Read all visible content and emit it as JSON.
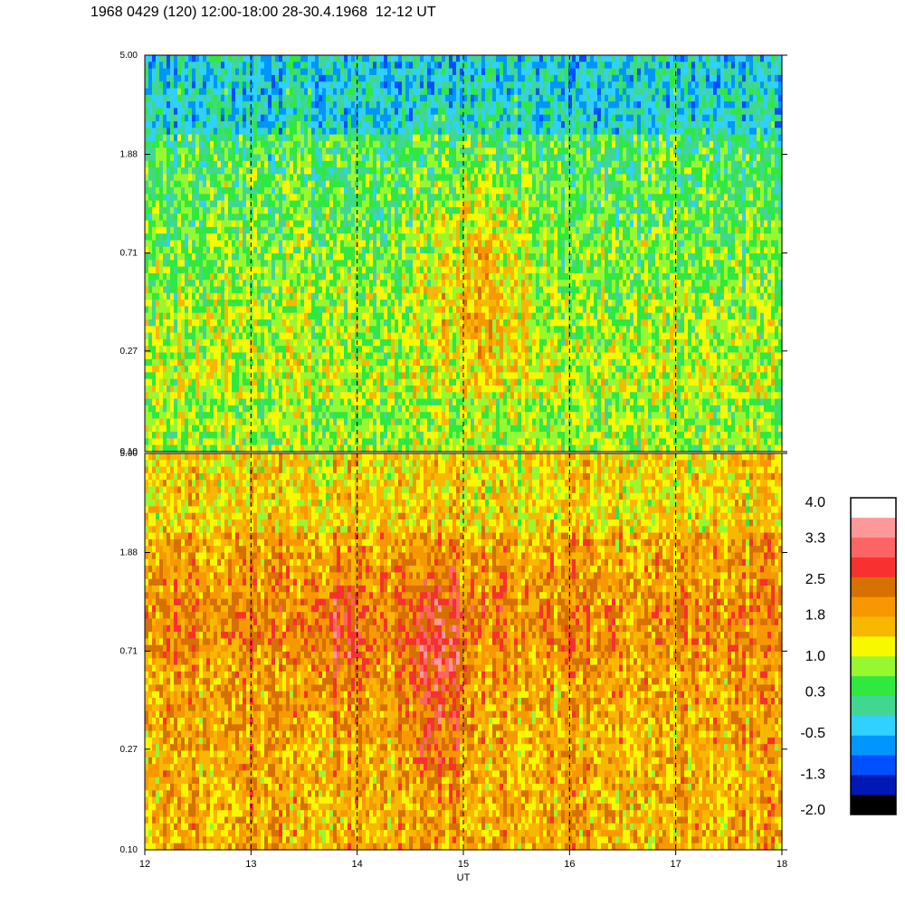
{
  "title": "1968 0429 (120) 12:00-18:00 28-30.4.1968  12-12 UT",
  "colors": {
    "scale": [
      "#000000",
      "#0018b4",
      "#0050ff",
      "#0096ff",
      "#30d0ff",
      "#40d890",
      "#30e840",
      "#98f830",
      "#f8f800",
      "#f8b800",
      "#f89800",
      "#d87000",
      "#f83030",
      "#ff6464",
      "#ff9898",
      "#ffffff"
    ],
    "dashed_line": "#000000",
    "frame": "#000000"
  },
  "chart_data": [
    {
      "type": "heatmap",
      "panel": "top",
      "y_tick_labels": [
        "5.00",
        "1.88",
        "0.71",
        "0.27",
        "0.10"
      ],
      "y_scale": "log",
      "ylim": [
        0.1,
        5.0
      ],
      "xlim": [
        12,
        18
      ],
      "dashed_vertical_lines_at": [
        13,
        14,
        15,
        16,
        17
      ],
      "dominant_levels": [
        "0.3",
        "1.0",
        "-0.5",
        "1.8"
      ]
    },
    {
      "type": "heatmap",
      "panel": "bottom",
      "y_tick_labels": [
        "5.00",
        "1.88",
        "0.71",
        "0.27",
        "0.10"
      ],
      "y_scale": "log",
      "ylim": [
        0.1,
        5.0
      ],
      "xlim": [
        12,
        18
      ],
      "x_tick_labels": [
        "12",
        "13",
        "14",
        "15",
        "16",
        "17",
        "18"
      ],
      "xlabel": "UT",
      "dashed_vertical_lines_at": [
        13,
        14,
        15,
        16,
        17
      ],
      "dominant_levels": [
        "1.8",
        "2.5",
        "1.0",
        "3.3"
      ]
    }
  ],
  "colorbar": {
    "labels": [
      "4.0",
      "3.3",
      "2.5",
      "1.8",
      "1.0",
      "0.3",
      "-0.5",
      "-1.3",
      "-2.0"
    ],
    "range": [
      -2.0,
      4.0
    ]
  }
}
